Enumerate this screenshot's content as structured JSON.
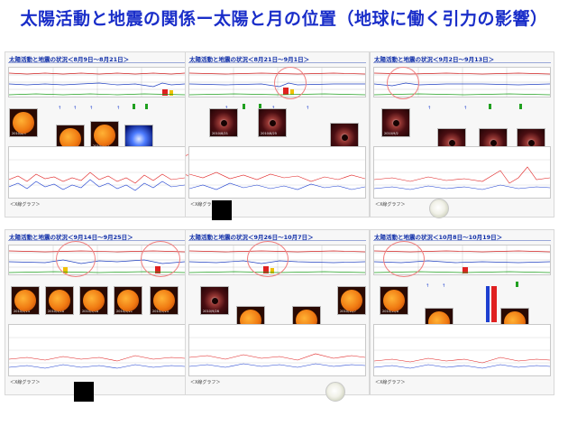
{
  "header": {
    "title": "太陽活動と地震の関係ー太陽と月の位置（地球に働く引力の影響）"
  },
  "panels": [
    {
      "title": "太陽活動と地震の状況＜8月9日〜8月21日＞",
      "xray_label": "＜X線グラフ＞"
    },
    {
      "title": "太陽活動と地震の状況＜8月21日〜9月1日＞",
      "xray_label": "＜X線グラフ＞"
    },
    {
      "title": "太陽活動と地震の状況＜9月2日〜9月13日＞",
      "xray_label": "＜X線グラフ＞"
    },
    {
      "title": "太陽活動と地震の状況＜9月14日〜9月25日＞",
      "xray_label": "＜X線グラフ＞"
    },
    {
      "title": "太陽活動と地震の状況＜9月26日〜10月7日＞",
      "xray_label": "＜X線グラフ＞"
    },
    {
      "title": "太陽活動と地震の状況＜10月8日〜10月19日＞",
      "xray_label": "＜X線グラフ＞"
    }
  ],
  "colors": {
    "title": "#1a2ec9",
    "panel_title": "#0f2ea8",
    "red_series": "#e02020",
    "blue_series": "#1d3fd0",
    "moon": "#f1f1e8"
  },
  "icons": {
    "new_moon": "new-moon-icon",
    "full_moon": "full-moon-icon"
  }
}
